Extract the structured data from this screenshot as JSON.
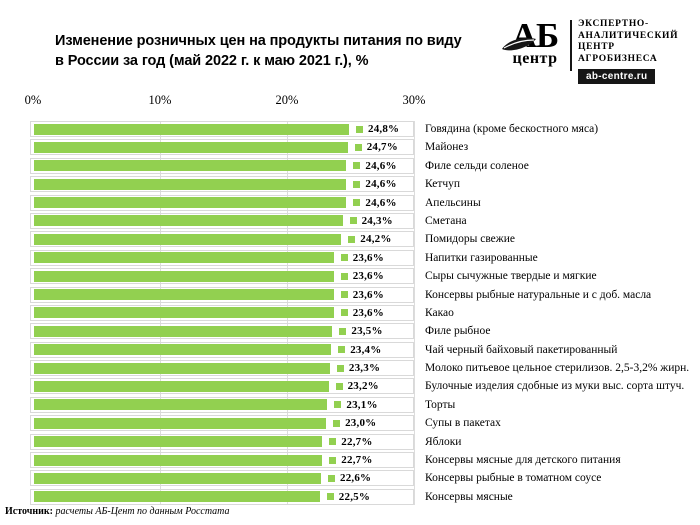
{
  "header": {
    "title_line1": "Изменение розничных цен на продукты питания по виду",
    "title_line2": "в России за год (май 2022 г. к маю 2021 г.), %"
  },
  "logo": {
    "abbr": "АБ",
    "word": "центр",
    "tagline": [
      "ЭКСПЕРТНО-",
      "АНАЛИТИЧЕСКИЙ",
      "ЦЕНТР",
      "АГРОБИЗНЕСА"
    ],
    "site": "ab-centre.ru"
  },
  "chart_data": {
    "type": "bar",
    "orientation": "horizontal",
    "title": "Изменение розничных цен на продукты питания по виду в России за год (май 2022 г. к маю 2021 г.), %",
    "categories": [
      "Говядина (кроме бескостного мяса)",
      "Майонез",
      "Филе сельди соленое",
      "Кетчуп",
      "Апельсины",
      "Сметана",
      "Помидоры свежие",
      "Напитки газированные",
      "Сыры сычужные твердые и мягкие",
      "Консервы рыбные натуральные и с доб. масла",
      "Какао",
      "Филе рыбное",
      "Чай черный байховый пакетированный",
      "Молоко питьевое цельное стерилизов. 2,5-3,2% жирн.",
      "Булочные изделия сдобные из муки выс. сорта штуч.",
      "Торты",
      "Супы в пакетах",
      "Яблоки",
      "Консервы мясные для детского питания",
      "Консервы рыбные в томатном соусе",
      "Консервы мясные"
    ],
    "values": [
      24.8,
      24.7,
      24.6,
      24.6,
      24.6,
      24.3,
      24.2,
      23.6,
      23.6,
      23.6,
      23.6,
      23.5,
      23.4,
      23.3,
      23.2,
      23.1,
      23.0,
      22.7,
      22.7,
      22.6,
      22.5
    ],
    "value_labels": [
      "24,8%",
      "24,7%",
      "24,6%",
      "24,6%",
      "24,6%",
      "24,3%",
      "24,2%",
      "23,6%",
      "23,6%",
      "23,6%",
      "23,6%",
      "23,5%",
      "23,4%",
      "23,3%",
      "23,2%",
      "23,1%",
      "23,0%",
      "22,7%",
      "22,7%",
      "22,6%",
      "22,5%"
    ],
    "unit": "%",
    "xlim": [
      0,
      30
    ],
    "x_tick_values": [
      0,
      10,
      20,
      30
    ],
    "x_ticks": [
      "0%",
      "10%",
      "20%",
      "30%"
    ],
    "bar_color": "#92d050",
    "grid": true,
    "grid_color": "#dcdcdc",
    "legend_position": "none"
  },
  "footer": {
    "source_label": "Источник:",
    "source_text": "расчеты АБ-Цент по данным Росстата"
  }
}
